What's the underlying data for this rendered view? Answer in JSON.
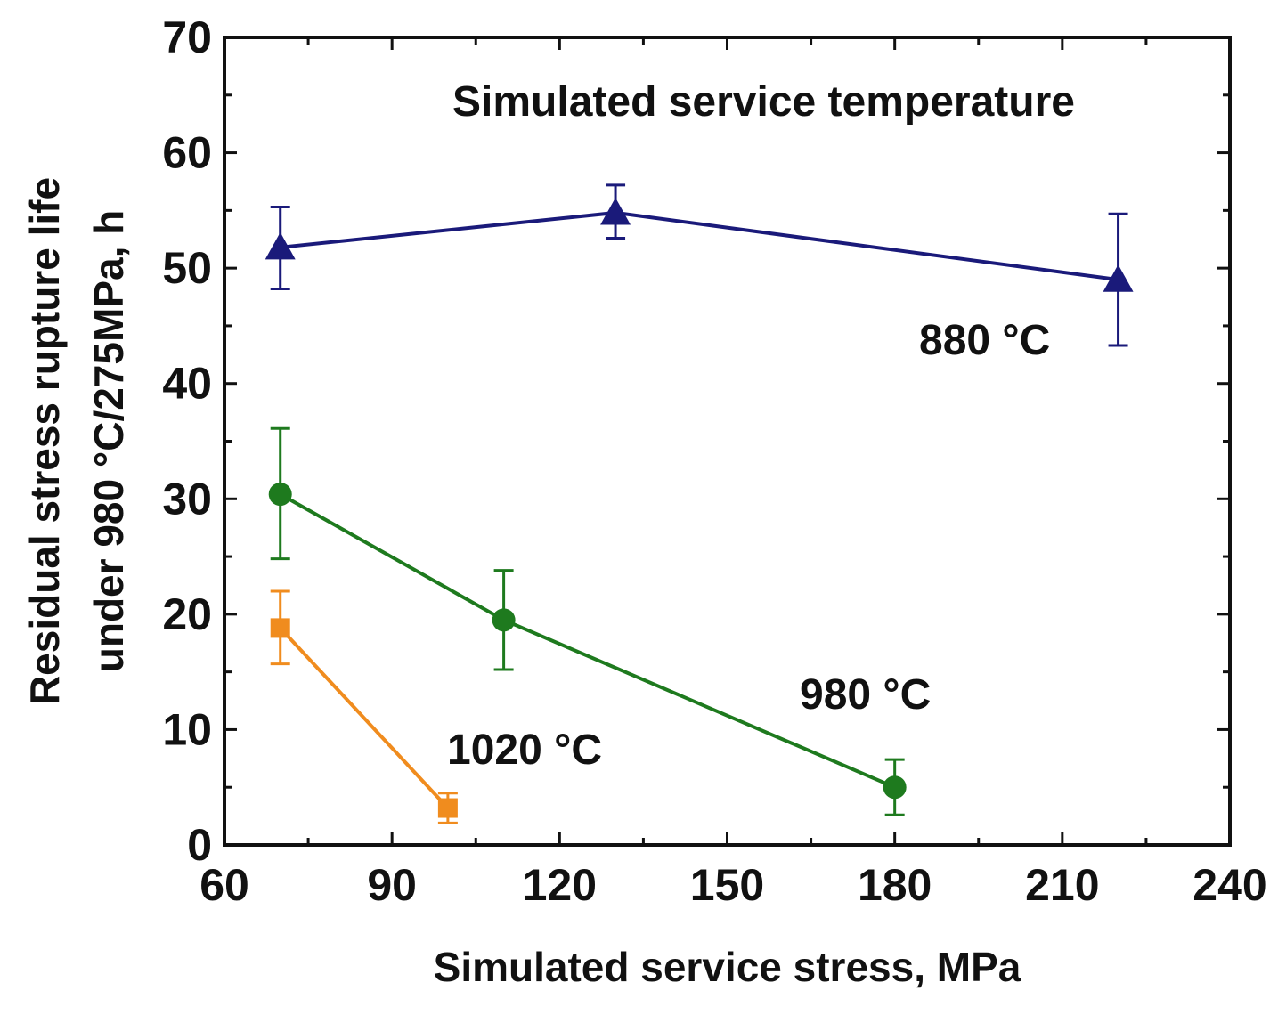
{
  "chart_data": {
    "type": "line",
    "title": "",
    "xlabel": "Simulated service stress, MPa",
    "ylabel_line1": "Residual stress rupture life",
    "ylabel_line2": "under 980 °C/275MPa, h",
    "xlim": [
      60,
      240
    ],
    "ylim": [
      0,
      70
    ],
    "xticks": [
      60,
      90,
      120,
      150,
      180,
      210,
      240
    ],
    "yticks": [
      0,
      10,
      20,
      30,
      40,
      50,
      60,
      70
    ],
    "legend_title": "Simulated service temperature",
    "series": [
      {
        "name": "880 °C",
        "label": "880 °C",
        "color": "#1a1a7a",
        "marker": "triangle",
        "points": [
          {
            "x": 70,
            "y": 51.8,
            "err_low": 48.2,
            "err_high": 55.3
          },
          {
            "x": 130,
            "y": 54.8,
            "err_low": 52.6,
            "err_high": 57.2
          },
          {
            "x": 220,
            "y": 49.0,
            "err_low": 43.3,
            "err_high": 54.7
          }
        ]
      },
      {
        "name": "980 °C",
        "label": "980 °C",
        "color": "#1e7a1e",
        "marker": "circle",
        "points": [
          {
            "x": 70,
            "y": 30.4,
            "err_low": 24.8,
            "err_high": 36.1
          },
          {
            "x": 110,
            "y": 19.5,
            "err_low": 15.2,
            "err_high": 23.8
          },
          {
            "x": 180,
            "y": 5.0,
            "err_low": 2.6,
            "err_high": 7.4
          }
        ]
      },
      {
        "name": "1020 °C",
        "label": "1020 °C",
        "color": "#f08c1e",
        "marker": "square",
        "points": [
          {
            "x": 70,
            "y": 18.8,
            "err_low": 15.7,
            "err_high": 22.0
          },
          {
            "x": 100,
            "y": 3.2,
            "err_low": 1.9,
            "err_high": 4.5
          }
        ]
      }
    ]
  }
}
